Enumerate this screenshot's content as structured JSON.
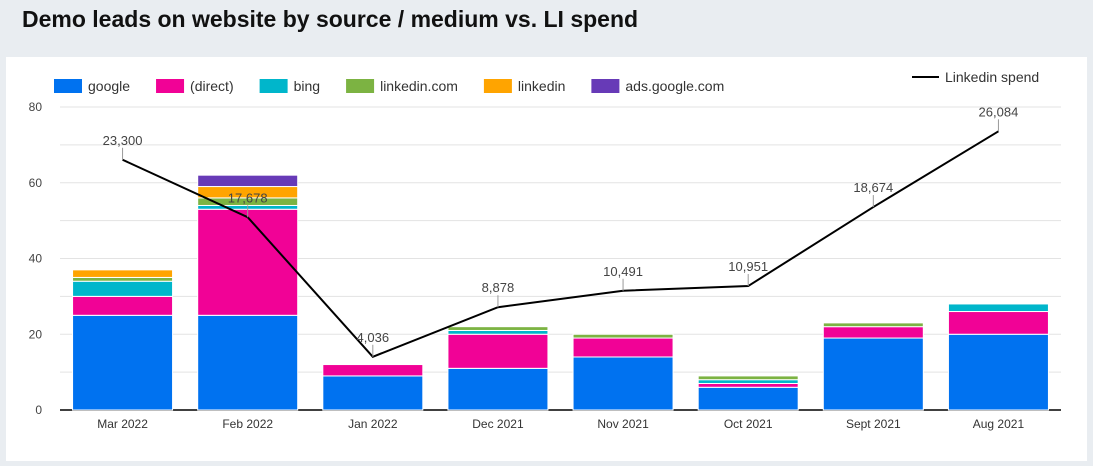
{
  "chart_data": {
    "type": "bar",
    "title": "Demo leads on website by source / medium vs. LI spend",
    "categories": [
      "Mar 2022",
      "Feb 2022",
      "Jan 2022",
      "Dec 2021",
      "Nov 2021",
      "Oct 2021",
      "Sept 2021",
      "Aug 2021"
    ],
    "series": [
      {
        "name": "google",
        "color": "#0072f0",
        "values": [
          25,
          25,
          9,
          11,
          14,
          6,
          19,
          20
        ]
      },
      {
        "name": "(direct)",
        "color": "#f10296",
        "values": [
          5,
          28,
          3,
          9,
          5,
          1,
          3,
          6
        ]
      },
      {
        "name": "bing",
        "color": "#00b6cb",
        "values": [
          4,
          1,
          0,
          1,
          0,
          1,
          0,
          2
        ]
      },
      {
        "name": "linkedin.com",
        "color": "#7cb342",
        "values": [
          1,
          2,
          0,
          1,
          1,
          1,
          1,
          0
        ]
      },
      {
        "name": "linkedin",
        "color": "#ffa400",
        "values": [
          2,
          3,
          0,
          0,
          0,
          0,
          0,
          0
        ]
      },
      {
        "name": "ads.google.com",
        "color": "#673ab7",
        "values": [
          0,
          3,
          0,
          0,
          0,
          0,
          0,
          0
        ]
      }
    ],
    "line": {
      "name": "Linkedin spend",
      "color": "#000000",
      "values": [
        23300,
        17678,
        4036,
        8878,
        10491,
        10951,
        18674,
        26084
      ],
      "labels": [
        "23,300",
        "17,678",
        "4,036",
        "8,878",
        "10,491",
        "10,951",
        "18,674",
        "26,084"
      ]
    },
    "ylim": [
      0,
      80
    ],
    "yticks": [
      "0",
      "20",
      "40",
      "60",
      "80"
    ],
    "y2lim": [
      -1170,
      28460
    ],
    "grid": true,
    "legend": "top"
  }
}
